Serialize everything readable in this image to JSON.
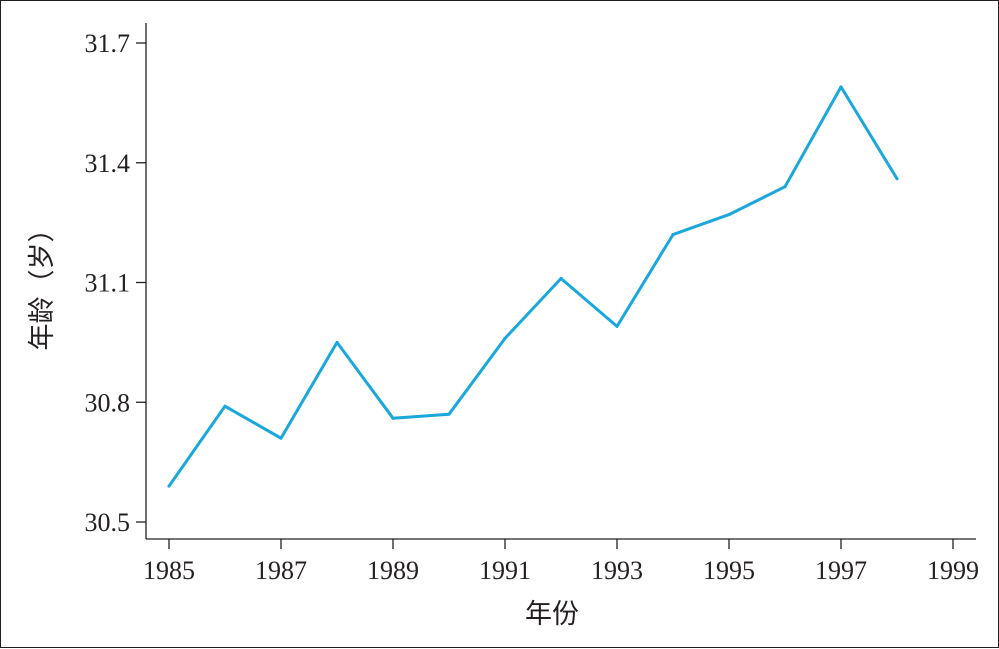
{
  "chart_data": {
    "type": "line",
    "title": "",
    "xlabel": "年份",
    "ylabel": "年龄（岁）",
    "xlim": [
      1985,
      1999
    ],
    "ylim": [
      30.5,
      31.7
    ],
    "x_ticks": [
      "1985",
      "1987",
      "1989",
      "1991",
      "1993",
      "1995",
      "1997",
      "1999"
    ],
    "y_ticks": [
      "30.5",
      "30.8",
      "31.1",
      "31.4",
      "31.7"
    ],
    "grid": false,
    "legend": "none",
    "series": [
      {
        "color": "#1aa7dc",
        "x": [
          1985,
          1986,
          1987,
          1988,
          1989,
          1990,
          1991,
          1992,
          1993,
          1994,
          1995,
          1996,
          1997,
          1998
        ],
        "y": [
          30.59,
          30.79,
          30.71,
          30.95,
          30.76,
          30.77,
          30.96,
          31.11,
          30.99,
          31.22,
          31.27,
          31.34,
          31.59,
          31.36
        ]
      }
    ]
  }
}
